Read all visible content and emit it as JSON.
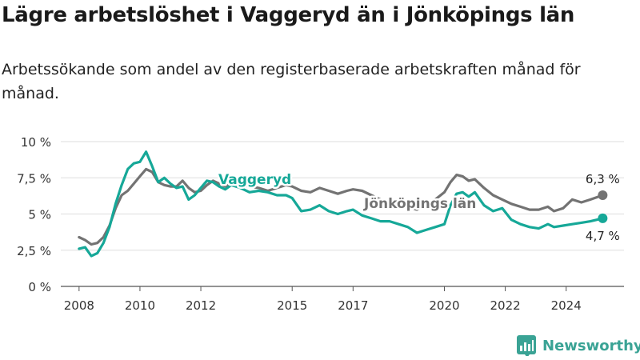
{
  "title": "Lägre arbetslöshet i Vaggeryd än i Jönköpings län",
  "subtitle": "Arbetssökande som andel av den registerbaserade arbetskraften månad för månad.",
  "brand": {
    "name": "Newsworthy",
    "color": "#3aa395",
    "icon": "bar-chart-logo-icon"
  },
  "chart_data": {
    "type": "line",
    "title": "Lägre arbetslöshet i Vaggeryd än i Jönköpings län",
    "subtitle": "Arbetssökande som andel av den registerbaserade arbetskraften månad för månad.",
    "xlabel": "",
    "ylabel": "",
    "x_ticks": [
      "2008",
      "2010",
      "2012",
      "2015",
      "2017",
      "2020",
      "2022",
      "2024"
    ],
    "y_ticks": [
      "0 %",
      "2,5 %",
      "5 %",
      "7,5 %",
      "10 %"
    ],
    "ylim": [
      0,
      10
    ],
    "xlim": [
      2007.4,
      2025.9
    ],
    "grid": true,
    "series": [
      {
        "name": "Jönköpings län",
        "color": "#737373",
        "end_label": "6,3 %",
        "points": [
          [
            2008.0,
            3.4
          ],
          [
            2008.2,
            3.2
          ],
          [
            2008.4,
            2.9
          ],
          [
            2008.6,
            3.0
          ],
          [
            2008.8,
            3.4
          ],
          [
            2009.0,
            4.2
          ],
          [
            2009.2,
            5.4
          ],
          [
            2009.4,
            6.3
          ],
          [
            2009.6,
            6.6
          ],
          [
            2009.8,
            7.1
          ],
          [
            2010.0,
            7.6
          ],
          [
            2010.2,
            8.1
          ],
          [
            2010.4,
            7.9
          ],
          [
            2010.6,
            7.2
          ],
          [
            2010.8,
            7.0
          ],
          [
            2011.0,
            6.9
          ],
          [
            2011.2,
            6.9
          ],
          [
            2011.4,
            7.3
          ],
          [
            2011.6,
            6.8
          ],
          [
            2011.8,
            6.5
          ],
          [
            2012.0,
            6.6
          ],
          [
            2012.2,
            7.0
          ],
          [
            2012.4,
            7.3
          ],
          [
            2012.6,
            7.1
          ],
          [
            2012.8,
            6.9
          ],
          [
            2013.0,
            7.1
          ],
          [
            2013.3,
            7.0
          ],
          [
            2013.6,
            6.9
          ],
          [
            2013.9,
            6.8
          ],
          [
            2014.2,
            6.6
          ],
          [
            2014.5,
            6.8
          ],
          [
            2014.8,
            7.0
          ],
          [
            2015.0,
            6.9
          ],
          [
            2015.3,
            6.6
          ],
          [
            2015.6,
            6.5
          ],
          [
            2015.9,
            6.8
          ],
          [
            2016.2,
            6.6
          ],
          [
            2016.5,
            6.4
          ],
          [
            2016.8,
            6.6
          ],
          [
            2017.0,
            6.7
          ],
          [
            2017.3,
            6.6
          ],
          [
            2017.6,
            6.3
          ],
          [
            2017.9,
            6.0
          ],
          [
            2018.2,
            5.7
          ],
          [
            2018.5,
            5.6
          ],
          [
            2018.8,
            5.5
          ],
          [
            2019.1,
            5.3
          ],
          [
            2019.4,
            5.6
          ],
          [
            2019.7,
            6.0
          ],
          [
            2020.0,
            6.5
          ],
          [
            2020.2,
            7.2
          ],
          [
            2020.4,
            7.7
          ],
          [
            2020.6,
            7.6
          ],
          [
            2020.8,
            7.3
          ],
          [
            2021.0,
            7.4
          ],
          [
            2021.3,
            6.8
          ],
          [
            2021.6,
            6.3
          ],
          [
            2021.9,
            6.0
          ],
          [
            2022.2,
            5.7
          ],
          [
            2022.5,
            5.5
          ],
          [
            2022.8,
            5.3
          ],
          [
            2023.1,
            5.3
          ],
          [
            2023.4,
            5.5
          ],
          [
            2023.6,
            5.2
          ],
          [
            2023.9,
            5.4
          ],
          [
            2024.2,
            6.0
          ],
          [
            2024.5,
            5.8
          ],
          [
            2024.8,
            6.0
          ],
          [
            2025.2,
            6.3
          ]
        ]
      },
      {
        "name": "Vaggeryd",
        "color": "#16a898",
        "end_label": "4,7 %",
        "points": [
          [
            2008.0,
            2.6
          ],
          [
            2008.2,
            2.7
          ],
          [
            2008.4,
            2.1
          ],
          [
            2008.6,
            2.3
          ],
          [
            2008.8,
            3.0
          ],
          [
            2009.0,
            4.1
          ],
          [
            2009.2,
            5.7
          ],
          [
            2009.4,
            7.0
          ],
          [
            2009.6,
            8.1
          ],
          [
            2009.8,
            8.5
          ],
          [
            2010.0,
            8.6
          ],
          [
            2010.2,
            9.3
          ],
          [
            2010.4,
            8.3
          ],
          [
            2010.6,
            7.2
          ],
          [
            2010.8,
            7.5
          ],
          [
            2011.0,
            7.1
          ],
          [
            2011.2,
            6.8
          ],
          [
            2011.4,
            6.9
          ],
          [
            2011.6,
            6.0
          ],
          [
            2011.8,
            6.3
          ],
          [
            2012.0,
            6.8
          ],
          [
            2012.2,
            7.3
          ],
          [
            2012.4,
            7.2
          ],
          [
            2012.6,
            6.9
          ],
          [
            2012.8,
            6.7
          ],
          [
            2013.0,
            7.0
          ],
          [
            2013.3,
            6.8
          ],
          [
            2013.6,
            6.5
          ],
          [
            2013.9,
            6.6
          ],
          [
            2014.2,
            6.5
          ],
          [
            2014.5,
            6.3
          ],
          [
            2014.8,
            6.3
          ],
          [
            2015.0,
            6.1
          ],
          [
            2015.3,
            5.2
          ],
          [
            2015.6,
            5.3
          ],
          [
            2015.9,
            5.6
          ],
          [
            2016.2,
            5.2
          ],
          [
            2016.5,
            5.0
          ],
          [
            2016.8,
            5.2
          ],
          [
            2017.0,
            5.3
          ],
          [
            2017.3,
            4.9
          ],
          [
            2017.6,
            4.7
          ],
          [
            2017.9,
            4.5
          ],
          [
            2018.2,
            4.5
          ],
          [
            2018.5,
            4.3
          ],
          [
            2018.8,
            4.1
          ],
          [
            2019.1,
            3.7
          ],
          [
            2019.4,
            3.9
          ],
          [
            2019.7,
            4.1
          ],
          [
            2020.0,
            4.3
          ],
          [
            2020.2,
            5.6
          ],
          [
            2020.4,
            6.4
          ],
          [
            2020.6,
            6.5
          ],
          [
            2020.8,
            6.2
          ],
          [
            2021.0,
            6.5
          ],
          [
            2021.3,
            5.6
          ],
          [
            2021.6,
            5.2
          ],
          [
            2021.9,
            5.4
          ],
          [
            2022.2,
            4.6
          ],
          [
            2022.5,
            4.3
          ],
          [
            2022.8,
            4.1
          ],
          [
            2023.1,
            4.0
          ],
          [
            2023.4,
            4.3
          ],
          [
            2023.6,
            4.1
          ],
          [
            2023.9,
            4.2
          ],
          [
            2024.2,
            4.3
          ],
          [
            2024.5,
            4.4
          ],
          [
            2024.8,
            4.5
          ],
          [
            2025.2,
            4.7
          ]
        ]
      }
    ]
  }
}
